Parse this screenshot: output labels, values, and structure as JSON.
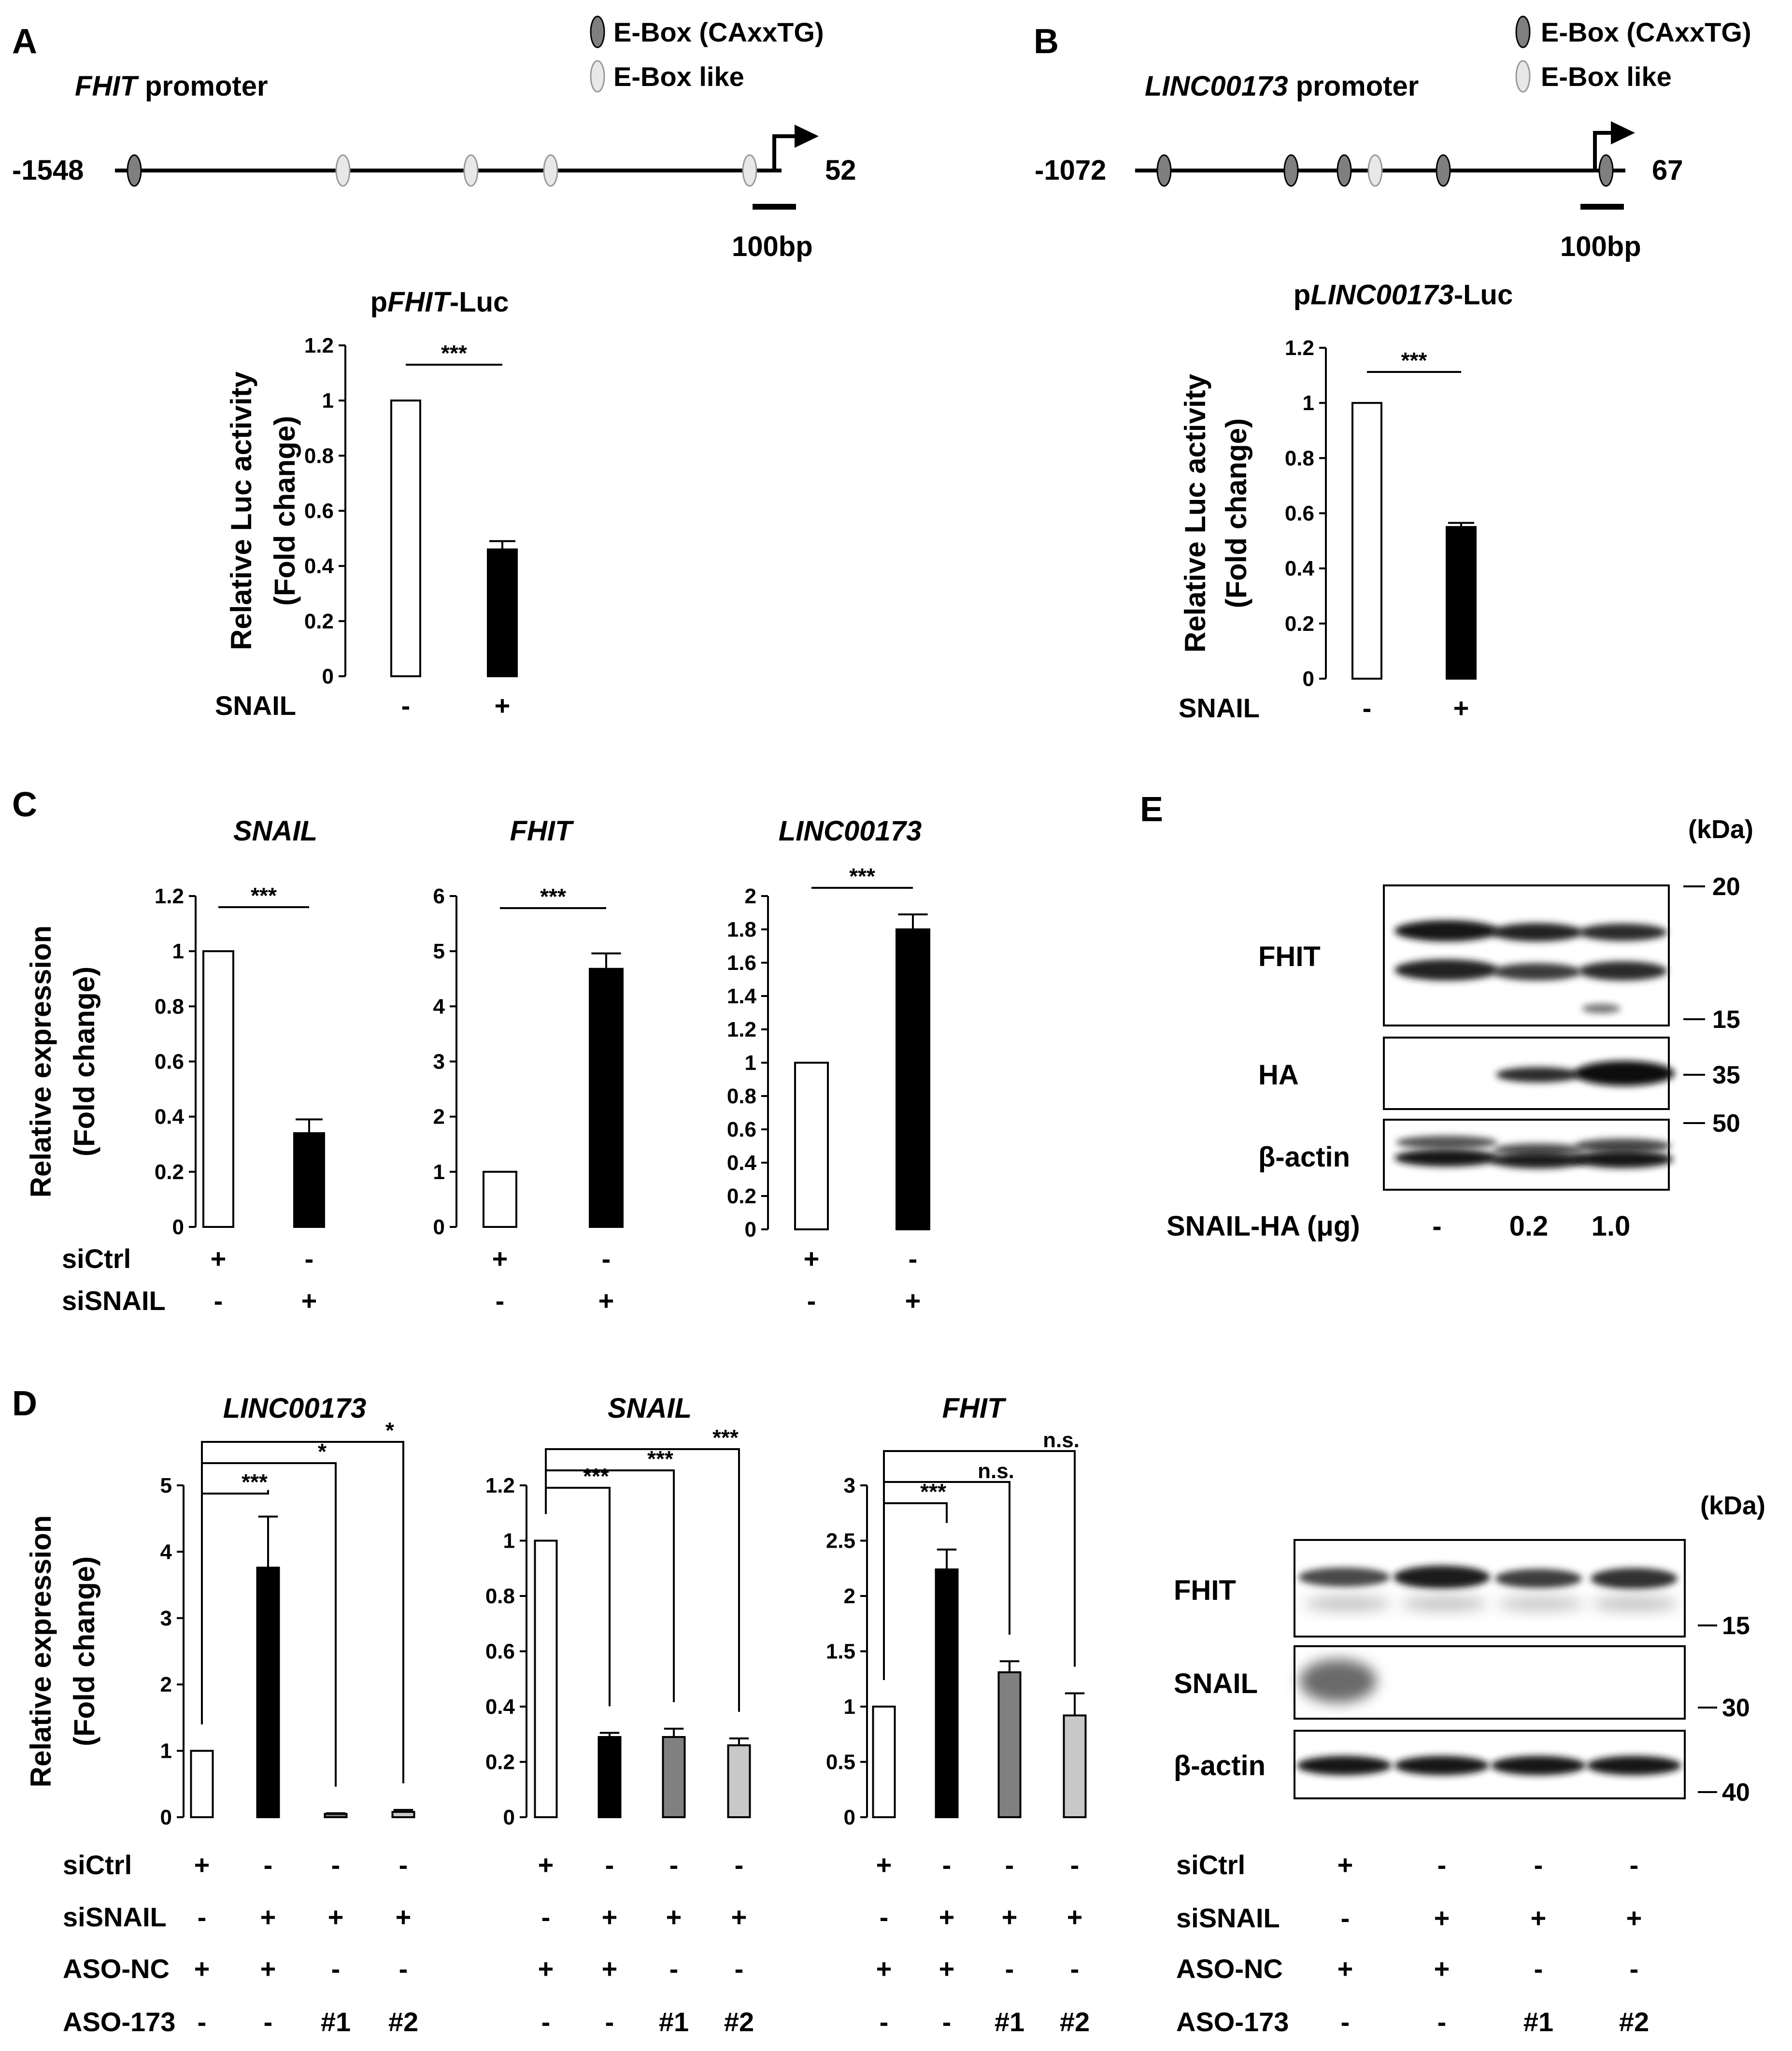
{
  "legend": {
    "ebox": "E-Box (CAxxTG)",
    "ebox_like": "E-Box like"
  },
  "promoter_a": {
    "panel": "A",
    "gene": "FHIT",
    "suffix": " promoter",
    "start": "-1548",
    "end": "52",
    "scale": "100bp"
  },
  "promoter_b": {
    "panel": "B",
    "gene": "LINC00173",
    "suffix": " promoter",
    "start": "-1072",
    "end": "67",
    "scale": "100bp"
  },
  "panel_c_label": "C",
  "panel_d_label": "D",
  "panel_e_label": "E",
  "chart_data": [
    {
      "id": "A_luc",
      "type": "bar",
      "title_prefix": "p",
      "title_gene": "FHIT",
      "title_suffix": "-Luc",
      "ylabel": [
        "Relative Luc activity",
        "(Fold change)"
      ],
      "ylim": [
        0,
        1.2
      ],
      "yticks": [
        "0",
        "0.2",
        "0.4",
        "0.6",
        "0.8",
        "1",
        "1.2"
      ],
      "values": [
        1.0,
        0.46
      ],
      "errors": [
        0,
        0.03
      ],
      "colors": [
        "#ffffff",
        "#000000"
      ],
      "significance": [
        {
          "from": 0,
          "to": 1,
          "label": "***"
        }
      ],
      "conditions": [
        {
          "label": "SNAIL",
          "values": [
            "-",
            "+"
          ]
        }
      ]
    },
    {
      "id": "B_luc",
      "type": "bar",
      "title_prefix": "p",
      "title_gene": "LINC00173",
      "title_suffix": "-Luc",
      "ylabel": [
        "Relative Luc activity",
        "(Fold change)"
      ],
      "ylim": [
        0,
        1.2
      ],
      "yticks": [
        "0",
        "0.2",
        "0.4",
        "0.6",
        "0.8",
        "1",
        "1.2"
      ],
      "values": [
        1.0,
        0.55
      ],
      "errors": [
        0,
        0.015
      ],
      "colors": [
        "#ffffff",
        "#000000"
      ],
      "significance": [
        {
          "from": 0,
          "to": 1,
          "label": "***"
        }
      ],
      "conditions": [
        {
          "label": "SNAIL",
          "values": [
            "-",
            "+"
          ]
        }
      ]
    },
    {
      "id": "C_snail",
      "type": "bar",
      "title_gene": "SNAIL",
      "ylabel": [
        "Relative expression",
        "(Fold change)"
      ],
      "ylim": [
        0,
        1.2
      ],
      "yticks": [
        "0",
        "0.2",
        "0.4",
        "0.6",
        "0.8",
        "1",
        "1.2"
      ],
      "values": [
        1.0,
        0.34
      ],
      "errors": [
        0,
        0.05
      ],
      "colors": [
        "#ffffff",
        "#000000"
      ],
      "significance": [
        {
          "from": 0,
          "to": 1,
          "label": "***"
        }
      ],
      "conditions": [
        {
          "label": "siCtrl",
          "values": [
            "+",
            "-"
          ]
        },
        {
          "label": "siSNAIL",
          "values": [
            "-",
            "+"
          ]
        }
      ]
    },
    {
      "id": "C_fhit",
      "type": "bar",
      "title_gene": "FHIT",
      "ylim": [
        0,
        6
      ],
      "yticks": [
        "0",
        "1",
        "2",
        "3",
        "4",
        "5",
        "6"
      ],
      "values": [
        1.0,
        4.68
      ],
      "errors": [
        0,
        0.28
      ],
      "colors": [
        "#ffffff",
        "#000000"
      ],
      "significance": [
        {
          "from": 0,
          "to": 1,
          "label": "***"
        }
      ],
      "conditions": [
        {
          "label": "",
          "values": [
            "+",
            "-"
          ]
        },
        {
          "label": "",
          "values": [
            "-",
            "+"
          ]
        }
      ]
    },
    {
      "id": "C_linc",
      "type": "bar",
      "title_gene": "LINC00173",
      "ylim": [
        0,
        2
      ],
      "yticks": [
        "0",
        "0.2",
        "0.4",
        "0.6",
        "0.8",
        "1",
        "1.2",
        "1.4",
        "1.6",
        "1.8",
        "2"
      ],
      "values": [
        1.0,
        1.8
      ],
      "errors": [
        0,
        0.09
      ],
      "colors": [
        "#ffffff",
        "#000000"
      ],
      "significance": [
        {
          "from": 0,
          "to": 1,
          "label": "***"
        }
      ],
      "conditions": [
        {
          "label": "",
          "values": [
            "+",
            "-"
          ]
        },
        {
          "label": "",
          "values": [
            "-",
            "+"
          ]
        }
      ]
    },
    {
      "id": "D_linc",
      "type": "bar",
      "title_gene": "LINC00173",
      "ylabel": [
        "Relative expression",
        "(Fold change)"
      ],
      "ylim": [
        0,
        5
      ],
      "yticks": [
        "0",
        "1",
        "2",
        "3",
        "4",
        "5"
      ],
      "values": [
        1.0,
        3.76,
        0.05,
        0.08
      ],
      "errors": [
        0,
        0.77,
        0.01,
        0.03
      ],
      "colors": [
        "#ffffff",
        "#000000",
        "#808080",
        "#c8c8c8"
      ],
      "significance": [
        {
          "from": 0,
          "to": 1,
          "label": "***"
        },
        {
          "from": 0,
          "to": 2,
          "label": "*"
        },
        {
          "from": 0,
          "to": 3,
          "label": "*"
        }
      ],
      "conditions": [
        {
          "label": "siCtrl",
          "values": [
            "+",
            "-",
            "-",
            "-"
          ]
        },
        {
          "label": "siSNAIL",
          "values": [
            "-",
            "+",
            "+",
            "+"
          ]
        },
        {
          "label": "ASO-NC",
          "values": [
            "+",
            "+",
            "-",
            "-"
          ]
        },
        {
          "label": "ASO-173",
          "values": [
            "-",
            "-",
            "#1",
            "#2"
          ]
        }
      ]
    },
    {
      "id": "D_snail",
      "type": "bar",
      "title_gene": "SNAIL",
      "ylim": [
        0,
        1.2
      ],
      "yticks": [
        "0",
        "0.2",
        "0.4",
        "0.6",
        "0.8",
        "1",
        "1.2"
      ],
      "values": [
        1.0,
        0.29,
        0.29,
        0.26
      ],
      "errors": [
        0,
        0.015,
        0.03,
        0.025
      ],
      "colors": [
        "#ffffff",
        "#000000",
        "#808080",
        "#c8c8c8"
      ],
      "significance": [
        {
          "from": 0,
          "to": 1,
          "label": "***"
        },
        {
          "from": 0,
          "to": 2,
          "label": "***"
        },
        {
          "from": 0,
          "to": 3,
          "label": "***"
        }
      ],
      "conditions": [
        {
          "label": "",
          "values": [
            "+",
            "-",
            "-",
            "-"
          ]
        },
        {
          "label": "",
          "values": [
            "-",
            "+",
            "+",
            "+"
          ]
        },
        {
          "label": "",
          "values": [
            "+",
            "+",
            "-",
            "-"
          ]
        },
        {
          "label": "",
          "values": [
            "-",
            "-",
            "#1",
            "#2"
          ]
        }
      ]
    },
    {
      "id": "D_fhit",
      "type": "bar",
      "title_gene": "FHIT",
      "ylim": [
        0,
        3
      ],
      "yticks": [
        "0",
        "0.5",
        "1",
        "1.5",
        "2",
        "2.5",
        "3"
      ],
      "values": [
        1.0,
        2.24,
        1.31,
        0.92
      ],
      "errors": [
        0,
        0.18,
        0.1,
        0.2
      ],
      "colors": [
        "#ffffff",
        "#000000",
        "#808080",
        "#c8c8c8"
      ],
      "significance": [
        {
          "from": 0,
          "to": 1,
          "label": "***"
        },
        {
          "from": 0,
          "to": 2,
          "label": "n.s."
        },
        {
          "from": 0,
          "to": 3,
          "label": "n.s."
        }
      ],
      "conditions": [
        {
          "label": "",
          "values": [
            "+",
            "-",
            "-",
            "-"
          ]
        },
        {
          "label": "",
          "values": [
            "-",
            "+",
            "+",
            "+"
          ]
        },
        {
          "label": "",
          "values": [
            "+",
            "+",
            "-",
            "-"
          ]
        },
        {
          "label": "",
          "values": [
            "-",
            "-",
            "#1",
            "#2"
          ]
        }
      ]
    }
  ],
  "blots": [
    {
      "id": "E_blot",
      "kda_label": "(kDa)",
      "rows": [
        {
          "label": "FHIT",
          "markers": [
            "20",
            "15"
          ]
        },
        {
          "label": "HA",
          "markers": [
            "35"
          ]
        },
        {
          "label": "β-actin",
          "markers": [
            "50"
          ]
        }
      ],
      "conditions": [
        {
          "label": "SNAIL-HA (μg)",
          "values": [
            "-",
            "0.2",
            "1.0"
          ]
        }
      ]
    },
    {
      "id": "D_blot",
      "kda_label": "(kDa)",
      "rows": [
        {
          "label": "FHIT",
          "markers": [
            "15"
          ]
        },
        {
          "label": "SNAIL",
          "markers": [
            "30"
          ]
        },
        {
          "label": "β-actin",
          "markers": [
            "40"
          ]
        }
      ],
      "conditions": [
        {
          "label": "siCtrl",
          "values": [
            "+",
            "-",
            "-",
            "-"
          ]
        },
        {
          "label": "siSNAIL",
          "values": [
            "-",
            "+",
            "+",
            "+"
          ]
        },
        {
          "label": "ASO-NC",
          "values": [
            "+",
            "+",
            "-",
            "-"
          ]
        },
        {
          "label": "ASO-173",
          "values": [
            "-",
            "-",
            "#1",
            "#2"
          ]
        }
      ]
    }
  ]
}
